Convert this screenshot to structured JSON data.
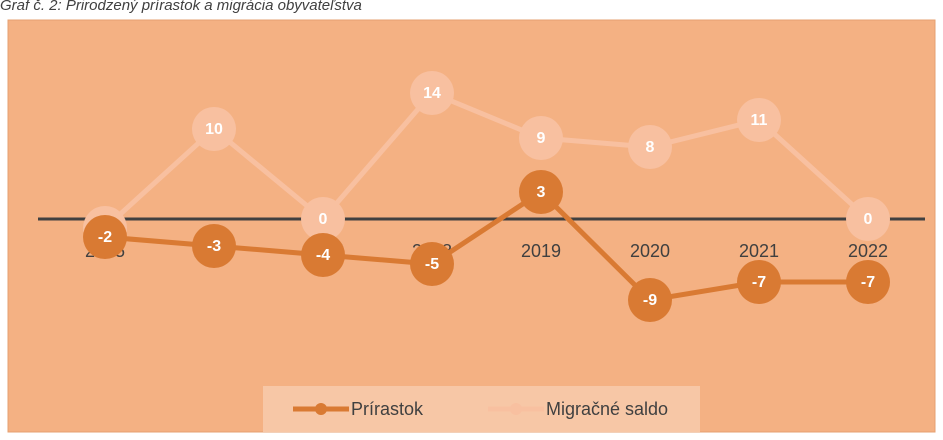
{
  "chart_data": {
    "type": "line",
    "title": "Graf č. 2: Prirodzený prírastok a migrácia obyvateľstva",
    "categories": [
      "2015",
      "2016",
      "2017",
      "2018",
      "2019",
      "2020",
      "2021",
      "2022"
    ],
    "series": [
      {
        "name": "Prírastok",
        "color": "#d97a33",
        "values": [
          -2,
          -3,
          -4,
          -5,
          3,
          -9,
          -7,
          -7
        ]
      },
      {
        "name": "Migračné saldo",
        "color": "#f8c0a0",
        "values": [
          -1,
          10,
          0,
          14,
          9,
          8,
          11,
          0
        ]
      }
    ],
    "ylim": [
      -15,
      20
    ],
    "background": "#f4b183"
  }
}
